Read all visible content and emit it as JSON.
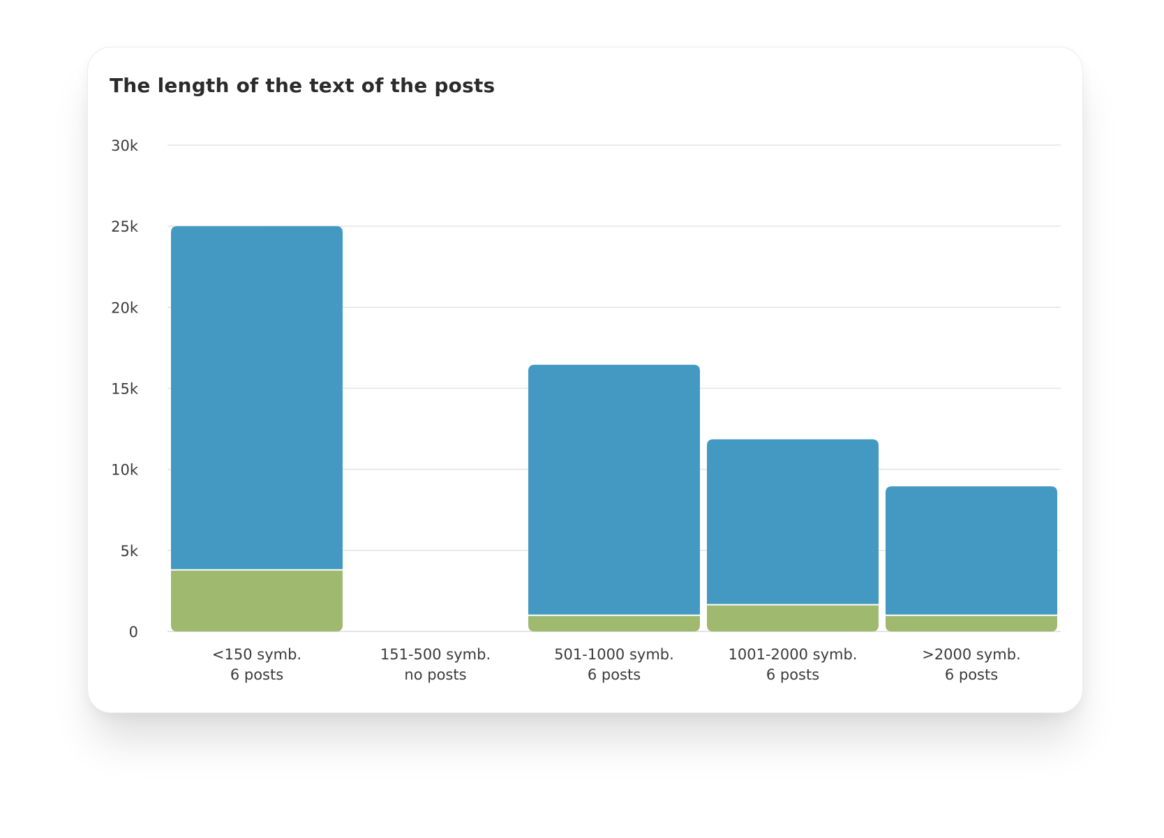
{
  "chart_data": {
    "type": "bar",
    "title": "The length of the text of the posts",
    "xlabel": "",
    "ylabel": "",
    "ylim": [
      0,
      30000
    ],
    "y_ticks": [
      {
        "value": 0,
        "label": "0"
      },
      {
        "value": 5000,
        "label": "5k"
      },
      {
        "value": 10000,
        "label": "10k"
      },
      {
        "value": 15000,
        "label": "15k"
      },
      {
        "value": 20000,
        "label": "20k"
      },
      {
        "value": 25000,
        "label": "25k"
      },
      {
        "value": 30000,
        "label": "30k"
      }
    ],
    "categories": [
      {
        "line1": "<150 symb.",
        "line2": "6 posts"
      },
      {
        "line1": "151-500 symb.",
        "line2": "no posts"
      },
      {
        "line1": "501-1000 symb.",
        "line2": "6 posts"
      },
      {
        "line1": "1001-2000 symb.",
        "line2": "6 posts"
      },
      {
        "line1": ">2000 symb.",
        "line2": "6 posts"
      }
    ],
    "series": [
      {
        "color": "#9fb96f",
        "values": [
          3800,
          0,
          1000,
          1650,
          1000
        ]
      },
      {
        "color": "#4399c1",
        "values": [
          21200,
          0,
          15450,
          10200,
          7950
        ]
      }
    ],
    "stacked": true,
    "grid": true,
    "legend": "none"
  }
}
